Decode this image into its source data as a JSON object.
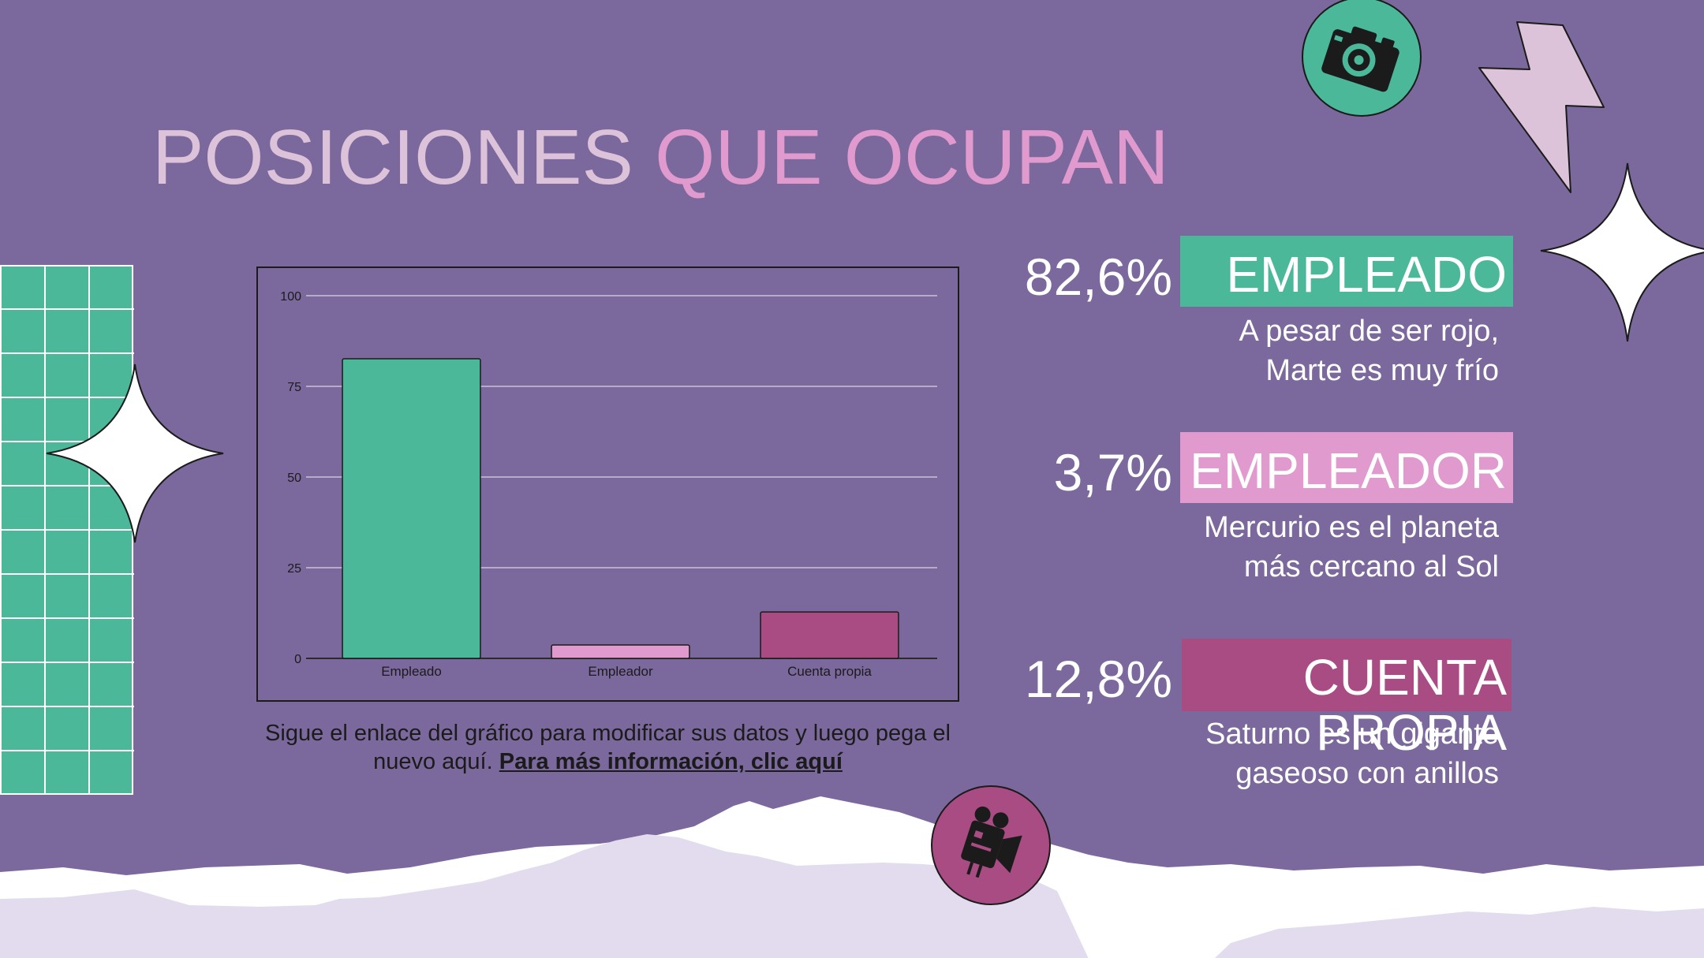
{
  "title": {
    "part1": "POSICIONES",
    "part2": "QUE OCUPAN"
  },
  "chart_data": {
    "type": "bar",
    "categories": [
      "Empleado",
      "Empleador",
      "Cuenta propia"
    ],
    "values": [
      82.6,
      3.7,
      12.8
    ],
    "colors": [
      "#4bb899",
      "#e09acd",
      "#a94c84"
    ],
    "yticks": [
      0,
      25,
      50,
      75,
      100
    ],
    "ylim": [
      0,
      100
    ],
    "grid": true
  },
  "caption": {
    "text": "Sigue el enlace del gráfico para modificar sus datos y luego pega el nuevo aquí.",
    "link": "Para más información, clic aquí"
  },
  "stats": [
    {
      "pct": "82,6%",
      "label": "EMPLEADO",
      "desc": "A pesar de ser rojo, Marte es muy frío",
      "color": "#4bb899"
    },
    {
      "pct": "3,7%",
      "label": "EMPLEADOR",
      "desc": "Mercurio es el planeta más cercano al Sol",
      "color": "#e09acd"
    },
    {
      "pct": "12,8%",
      "label": "CUENTA PROPIA",
      "desc": "Saturno es un gigante gaseoso con anillos",
      "color": "#a94c84"
    }
  ],
  "icons": {
    "camera": "camera-icon",
    "video": "video-camera-icon",
    "lightning": "lightning-icon",
    "star": "sparkle-star-icon"
  }
}
